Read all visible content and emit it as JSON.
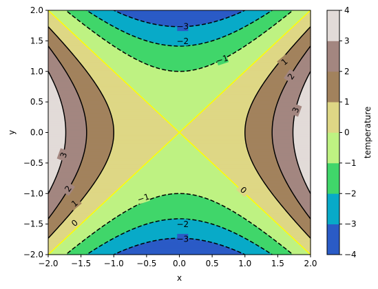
{
  "chart_data": {
    "type": "contour",
    "function": "x^2 - y^2",
    "xlabel": "x",
    "ylabel": "y",
    "xlim": [
      -2.0,
      2.0
    ],
    "ylim": [
      -2.0,
      2.0
    ],
    "x_ticks": [
      "−2.0",
      "−1.5",
      "−1.0",
      "−0.5",
      "0.0",
      "0.5",
      "1.0",
      "1.5",
      "2.0"
    ],
    "y_ticks": [
      "−2.0",
      "−1.5",
      "−1.0",
      "−0.5",
      "0.0",
      "0.5",
      "1.0",
      "1.5",
      "2.0"
    ],
    "filled_levels": [
      -4,
      -3,
      -2,
      -1,
      0,
      1,
      2,
      3,
      4
    ],
    "band_colors": [
      "#2a5bc6",
      "#08aac8",
      "#40d66a",
      "#bef282",
      "#ded785",
      "#a2825d",
      "#a38680",
      "#e2dbd8"
    ],
    "contour_lines": [
      {
        "level": -3,
        "label": "−3",
        "color": "#000000",
        "style": "dashed"
      },
      {
        "level": -2,
        "label": "−2",
        "color": "#000000",
        "style": "dashed"
      },
      {
        "level": -1,
        "label": "−1",
        "color": "#000000",
        "style": "dashed"
      },
      {
        "level": 0,
        "label": "0",
        "color": "#ffff00",
        "style": "solid"
      },
      {
        "level": 1,
        "label": "1",
        "color": "#000000",
        "style": "solid"
      },
      {
        "level": 2,
        "label": "2",
        "color": "#000000",
        "style": "solid"
      },
      {
        "level": 3,
        "label": "3",
        "color": "#000000",
        "style": "solid"
      }
    ],
    "colorbar": {
      "label": "temperature",
      "ticks": [
        "−4",
        "−3",
        "−2",
        "−1",
        "0",
        "1",
        "2",
        "3",
        "4"
      ]
    },
    "grid": false
  }
}
